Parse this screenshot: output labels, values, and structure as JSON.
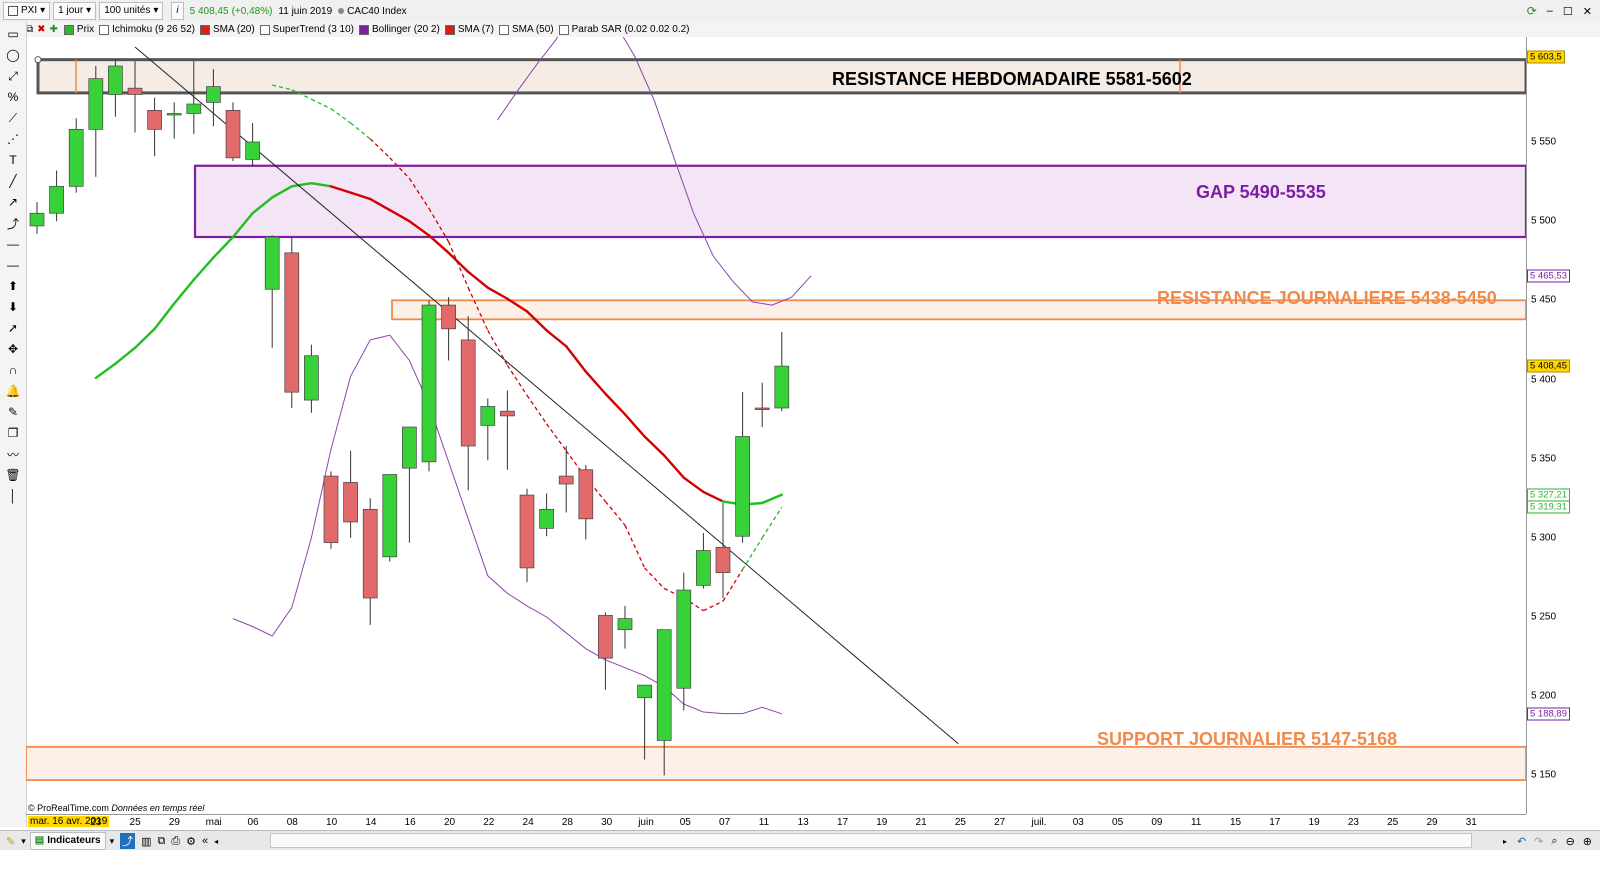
{
  "toolbar": {
    "ticker": "PXI",
    "timeframe": "1 jour",
    "units": "100 unités",
    "info_icon": "i",
    "last_price": "5 408,45",
    "change": "(+0,48%)",
    "date": "11 juin 2019",
    "instrument": "CAC40 Index"
  },
  "indicators": [
    {
      "label": "Prix",
      "color": "#2fb52f"
    },
    {
      "label": "Ichimoku (9 26 52)",
      "color": "#ffffff"
    },
    {
      "label": "SMA (20)",
      "color": "#d42020"
    },
    {
      "label": "SuperTrend (3 10)",
      "color": "#ffffff"
    },
    {
      "label": "Bollinger (20 2)",
      "color": "#7b1fa2"
    },
    {
      "label": "SMA (7)",
      "color": "#d42020"
    },
    {
      "label": "SMA (50)",
      "color": "#ffffff"
    },
    {
      "label": "Parab SAR (0.02 0.02 0.2)",
      "color": "#ffffff"
    }
  ],
  "annotations": {
    "weekly_resistance": "RESISTANCE HEBDOMADAIRE 5581-5602",
    "gap": "GAP 5490-5535",
    "daily_resistance": "RESISTANCE JOURNALIERE 5438-5450",
    "daily_support": "SUPPORT JOURNALIER 5147-5168"
  },
  "zones": [
    {
      "name": "weekly_resistance",
      "low": 5581,
      "high": 5602,
      "color": "#555555",
      "fill": "#f6ece6"
    },
    {
      "name": "gap",
      "low": 5490,
      "high": 5535,
      "color": "#7b1fa2",
      "fill": "#f3e4f6"
    },
    {
      "name": "daily_resistance",
      "low": 5438,
      "high": 5450,
      "color": "#f08a4b",
      "fill": "#fdf0e8"
    },
    {
      "name": "daily_support",
      "low": 5147,
      "high": 5168,
      "color": "#f08a4b",
      "fill": "#fdf0e8"
    }
  ],
  "price_axis": {
    "ticks": [
      "5 550",
      "5 500",
      "5 450",
      "5 400",
      "5 350",
      "5 300",
      "5 250",
      "5 200",
      "5 150"
    ],
    "tick_values": [
      5550,
      5500,
      5450,
      5400,
      5350,
      5300,
      5250,
      5200,
      5150
    ],
    "markers": [
      {
        "label": "5 603,5",
        "value": 5603.5,
        "bg": "#ffd700",
        "fg": "#000000"
      },
      {
        "label": "5 465,53",
        "value": 5465.53,
        "bg": "#ffffff",
        "fg": "#7b1fa2"
      },
      {
        "label": "5 408,45",
        "value": 5408.45,
        "bg": "#ffd700",
        "fg": "#000000"
      },
      {
        "label": "5 327,21",
        "value": 5327.21,
        "bg": "#ffffff",
        "fg": "#2fb52f"
      },
      {
        "label": "5 319,31",
        "value": 5319.31,
        "bg": "#ffffff",
        "fg": "#2fb52f"
      },
      {
        "label": "5 188,89",
        "value": 5188.89,
        "bg": "#ffffff",
        "fg": "#7b1fa2"
      }
    ]
  },
  "date_axis": {
    "cursor_label": "mar. 16 avr. 2019",
    "ticks": [
      "23",
      "25",
      "29",
      "mai",
      "06",
      "08",
      "10",
      "14",
      "16",
      "20",
      "22",
      "24",
      "28",
      "30",
      "juin",
      "05",
      "07",
      "11",
      "13",
      "17",
      "19",
      "21",
      "25",
      "27",
      "juil.",
      "03",
      "05",
      "09",
      "11",
      "15",
      "17",
      "19",
      "23",
      "25",
      "29",
      "31"
    ]
  },
  "footer": {
    "credit": "© ProRealTime.com",
    "credit_note": "Données en temps réel",
    "indicators_button": "Indicateurs"
  },
  "chart_data": {
    "type": "candlestick",
    "title": "CAC40 Index",
    "ylim": [
      5130,
      5610
    ],
    "candles": [
      {
        "o": 5497,
        "h": 5512,
        "l": 5492,
        "c": 5505
      },
      {
        "o": 5505,
        "h": 5532,
        "l": 5500,
        "c": 5522
      },
      {
        "o": 5522,
        "h": 5565,
        "l": 5518,
        "c": 5558
      },
      {
        "o": 5558,
        "h": 5598,
        "l": 5528,
        "c": 5590
      },
      {
        "o": 5580,
        "h": 5602,
        "l": 5566,
        "c": 5598
      },
      {
        "o": 5584,
        "h": 5601,
        "l": 5556,
        "c": 5580
      },
      {
        "o": 5570,
        "h": 5578,
        "l": 5541,
        "c": 5558
      },
      {
        "o": 5568,
        "h": 5575,
        "l": 5552,
        "c": 5568
      },
      {
        "o": 5568,
        "h": 5601,
        "l": 5555,
        "c": 5574
      },
      {
        "o": 5575,
        "h": 5596,
        "l": 5560,
        "c": 5585
      },
      {
        "o": 5570,
        "h": 5575,
        "l": 5538,
        "c": 5540
      },
      {
        "o": 5539,
        "h": 5562,
        "l": 5535,
        "c": 5550
      },
      {
        "o": 5457,
        "h": 5491,
        "l": 5420,
        "c": 5490
      },
      {
        "o": 5480,
        "h": 5490,
        "l": 5382,
        "c": 5392
      },
      {
        "o": 5387,
        "h": 5422,
        "l": 5379,
        "c": 5415
      },
      {
        "o": 5339,
        "h": 5342,
        "l": 5293,
        "c": 5297
      },
      {
        "o": 5335,
        "h": 5355,
        "l": 5300,
        "c": 5310
      },
      {
        "o": 5318,
        "h": 5325,
        "l": 5245,
        "c": 5262
      },
      {
        "o": 5288,
        "h": 5338,
        "l": 5285,
        "c": 5340
      },
      {
        "o": 5344,
        "h": 5370,
        "l": 5297,
        "c": 5370
      },
      {
        "o": 5348,
        "h": 5450,
        "l": 5342,
        "c": 5447
      },
      {
        "o": 5447,
        "h": 5452,
        "l": 5412,
        "c": 5432
      },
      {
        "o": 5425,
        "h": 5440,
        "l": 5330,
        "c": 5358
      },
      {
        "o": 5371,
        "h": 5388,
        "l": 5349,
        "c": 5383
      },
      {
        "o": 5380,
        "h": 5393,
        "l": 5343,
        "c": 5377
      },
      {
        "o": 5327,
        "h": 5331,
        "l": 5272,
        "c": 5281
      },
      {
        "o": 5306,
        "h": 5328,
        "l": 5301,
        "c": 5318
      },
      {
        "o": 5339,
        "h": 5358,
        "l": 5316,
        "c": 5334
      },
      {
        "o": 5343,
        "h": 5346,
        "l": 5299,
        "c": 5312
      },
      {
        "o": 5251,
        "h": 5253,
        "l": 5204,
        "c": 5224
      },
      {
        "o": 5242,
        "h": 5257,
        "l": 5230,
        "c": 5249
      },
      {
        "o": 5199,
        "h": 5207,
        "l": 5160,
        "c": 5207
      },
      {
        "o": 5172,
        "h": 5242,
        "l": 5150,
        "c": 5242
      },
      {
        "o": 5205,
        "h": 5278,
        "l": 5191,
        "c": 5267
      },
      {
        "o": 5270,
        "h": 5303,
        "l": 5268,
        "c": 5292
      },
      {
        "o": 5294,
        "h": 5322,
        "l": 5262,
        "c": 5278
      },
      {
        "o": 5301,
        "h": 5392,
        "l": 5297,
        "c": 5364
      },
      {
        "o": 5382,
        "h": 5398,
        "l": 5370,
        "c": 5381
      },
      {
        "o": 5382,
        "h": 5430,
        "l": 5380,
        "c": 5408.45
      }
    ],
    "sma20": [
      5401,
      5410,
      5420,
      5432,
      5448,
      5463,
      5477,
      5490,
      5505,
      5515,
      5522,
      5524,
      5522,
      5518,
      5514,
      5507,
      5500,
      5491,
      5480,
      5468,
      5458,
      5451,
      5443,
      5431,
      5421,
      5405,
      5391,
      5378,
      5364,
      5352,
      5338,
      5329,
      5323,
      5321,
      5322,
      5327.21
    ],
    "sma7": [
      5586,
      5583,
      5577,
      5571,
      5562,
      5552,
      5540,
      5527,
      5508,
      5487,
      5458,
      5431,
      5409,
      5390,
      5372,
      5355,
      5338,
      5323,
      5308,
      5281,
      5268,
      5262,
      5254,
      5260,
      5280,
      5300,
      5319.31
    ],
    "bollinger_upper": [
      5564,
      5582,
      5599,
      5615,
      5640,
      5648,
      5625,
      5604,
      5576,
      5540,
      5505,
      5478,
      5462,
      5449,
      5447,
      5452,
      5465.53
    ],
    "bollinger_lower": [
      5249,
      5244,
      5238,
      5256,
      5300,
      5356,
      5402,
      5425,
      5428,
      5412,
      5384,
      5348,
      5312,
      5276,
      5265,
      5257,
      5250,
      5240,
      5230,
      5223,
      5218,
      5213,
      5206,
      5195,
      5190,
      5189,
      5189,
      5193,
      5188.89
    ],
    "trendline": {
      "from": [
        5,
        5610
      ],
      "to": [
        47,
        5170
      ]
    }
  }
}
